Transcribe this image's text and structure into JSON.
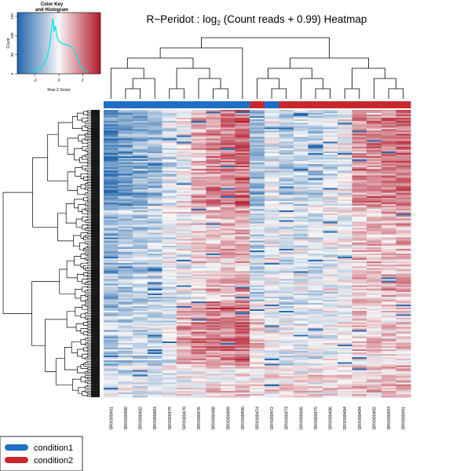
{
  "chart_data": {
    "type": "heatmap",
    "title": {
      "prefix": "R−Peridot : log",
      "subscript": "2",
      "suffix": " (Count reads + 0.99) Heatmap"
    },
    "color_key": {
      "title_line1": "Color Key",
      "title_line2": "and Histogram",
      "xlabel": "Row Z-Score",
      "ylabel": "Count",
      "x_ticks": [
        "-2",
        "0",
        "2"
      ],
      "y_ticks": [
        "0",
        "50",
        "100",
        "150"
      ],
      "x_range": [
        -3.5,
        3.5
      ],
      "y_range": [
        0,
        160
      ],
      "colors": {
        "low": "#2166ac",
        "mid": "#f7f7f7",
        "high": "#b2182b"
      },
      "histogram_line_color": "#00e5e5",
      "histogram": [
        [
          -2.4,
          4
        ],
        [
          -2.2,
          6
        ],
        [
          -2.0,
          8
        ],
        [
          -1.8,
          11
        ],
        [
          -1.6,
          15
        ],
        [
          -1.4,
          20
        ],
        [
          -1.2,
          28
        ],
        [
          -1.0,
          42
        ],
        [
          -0.8,
          70
        ],
        [
          -0.6,
          120
        ],
        [
          -0.5,
          145
        ],
        [
          -0.4,
          110
        ],
        [
          -0.3,
          125
        ],
        [
          -0.2,
          105
        ],
        [
          -0.1,
          92
        ],
        [
          0.0,
          86
        ],
        [
          0.2,
          80
        ],
        [
          0.4,
          78
        ],
        [
          0.6,
          76
        ],
        [
          0.8,
          74
        ],
        [
          1.0,
          72
        ],
        [
          1.2,
          66
        ],
        [
          1.4,
          55
        ],
        [
          1.6,
          38
        ],
        [
          1.8,
          22
        ],
        [
          2.0,
          12
        ],
        [
          2.2,
          8
        ],
        [
          2.4,
          5
        ]
      ]
    },
    "columns": [
      "SRX000481",
      "SRX000480",
      "SRX000482",
      "SRX000483",
      "SRX000479",
      "SRX000478",
      "SRX000476",
      "SRX000488",
      "SRX000489",
      "SRX000490",
      "SRX000474",
      "SRX000472",
      "SRX000473",
      "SRX000485",
      "SRX000475",
      "SRX000486",
      "SRX000484",
      "SRX000494",
      "SRX000492",
      "SRX000493",
      "SRX000491"
    ],
    "column_conditions": [
      "condition1",
      "condition1",
      "condition1",
      "condition1",
      "condition1",
      "condition1",
      "condition1",
      "condition1",
      "condition1",
      "condition1",
      "condition2",
      "condition1",
      "condition2",
      "condition2",
      "condition2",
      "condition2",
      "condition2",
      "condition2",
      "condition2",
      "condition2",
      "condition2"
    ],
    "column_tint": [
      -0.9,
      -0.7,
      -0.6,
      -0.5,
      -0.2,
      0.0,
      0.35,
      0.55,
      0.6,
      0.75,
      -0.55,
      -0.1,
      -0.35,
      -0.25,
      -0.3,
      -0.15,
      -0.05,
      0.5,
      0.55,
      0.6,
      0.65
    ],
    "n_rows": 180,
    "row_blocks": [
      {
        "rows": [
          0,
          60
        ],
        "pattern": "left-blue-right-red"
      },
      {
        "rows": [
          60,
          120
        ],
        "pattern": "mixed"
      },
      {
        "rows": [
          120,
          160
        ],
        "pattern": "middle-red"
      },
      {
        "rows": [
          160,
          180
        ],
        "pattern": "bottom-band"
      }
    ],
    "legend": [
      {
        "label": "condition1",
        "color": "#1f6fc5"
      },
      {
        "label": "condition2",
        "color": "#c8282d"
      }
    ],
    "xlabel": "",
    "ylabel": ""
  }
}
